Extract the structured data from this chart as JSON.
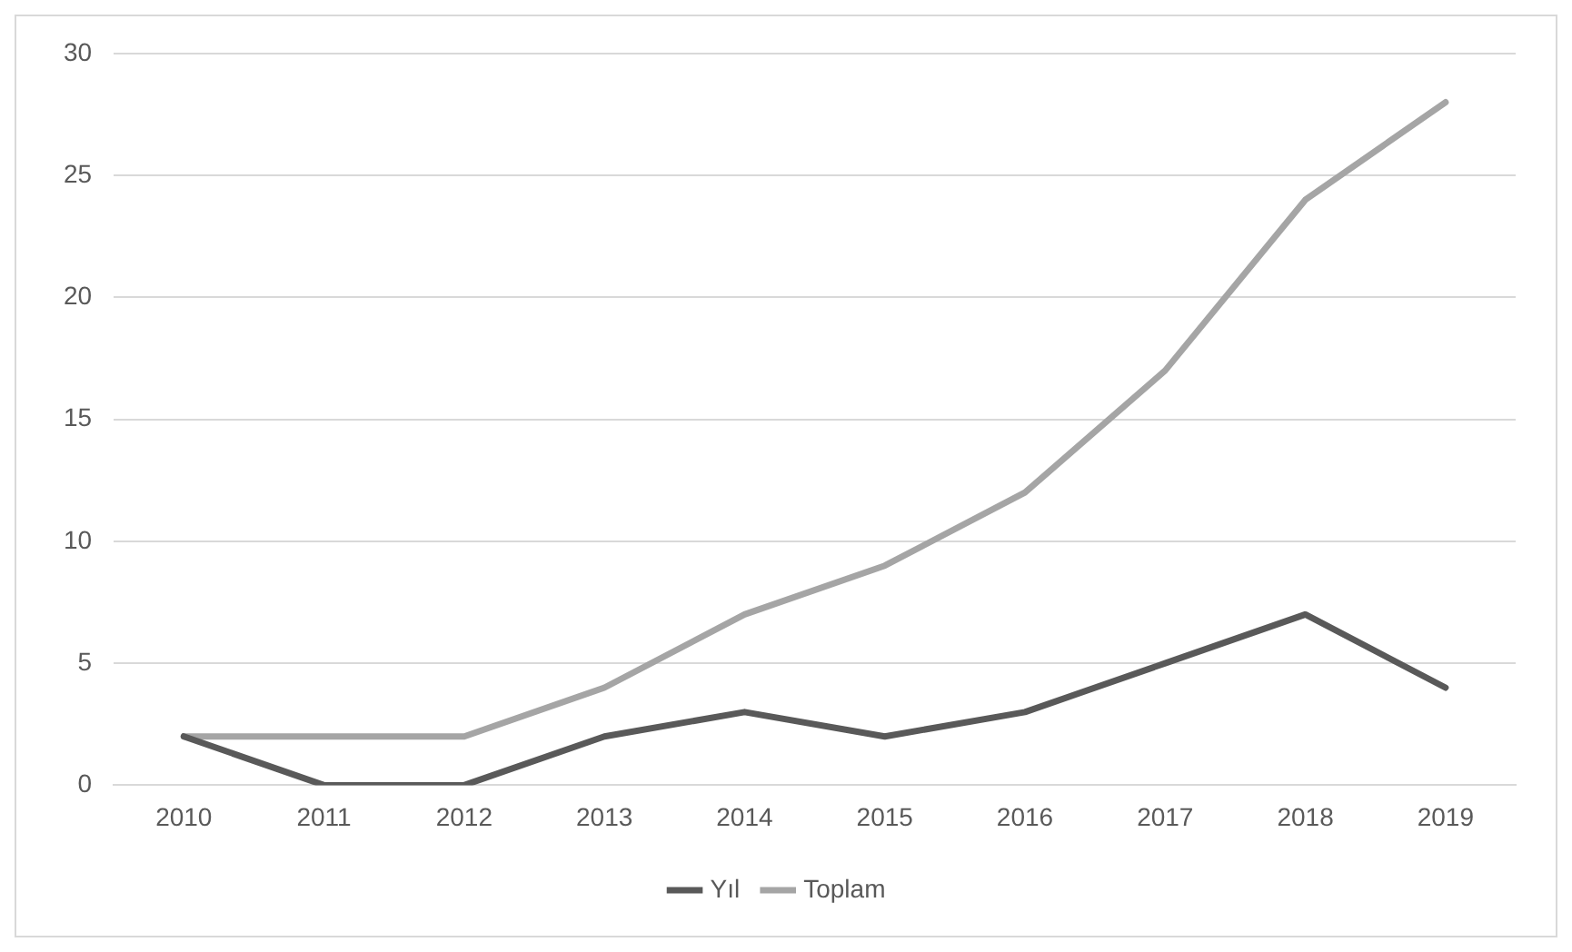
{
  "chart_data": {
    "type": "line",
    "categories": [
      "2010",
      "2011",
      "2012",
      "2013",
      "2014",
      "2015",
      "2016",
      "2017",
      "2018",
      "2019"
    ],
    "series": [
      {
        "name": "Yıl",
        "color": "#595959",
        "values": [
          2,
          0,
          0,
          2,
          3,
          2,
          3,
          5,
          7,
          4
        ]
      },
      {
        "name": "Toplam",
        "color": "#a5a5a5",
        "values": [
          2,
          2,
          2,
          4,
          7,
          9,
          12,
          17,
          24,
          28
        ]
      }
    ],
    "ylim": [
      0,
      30
    ],
    "yticks": [
      0,
      5,
      10,
      15,
      20,
      25,
      30
    ],
    "grid": "y",
    "legend": "bottom",
    "marker": "none",
    "line_style": "solid"
  }
}
